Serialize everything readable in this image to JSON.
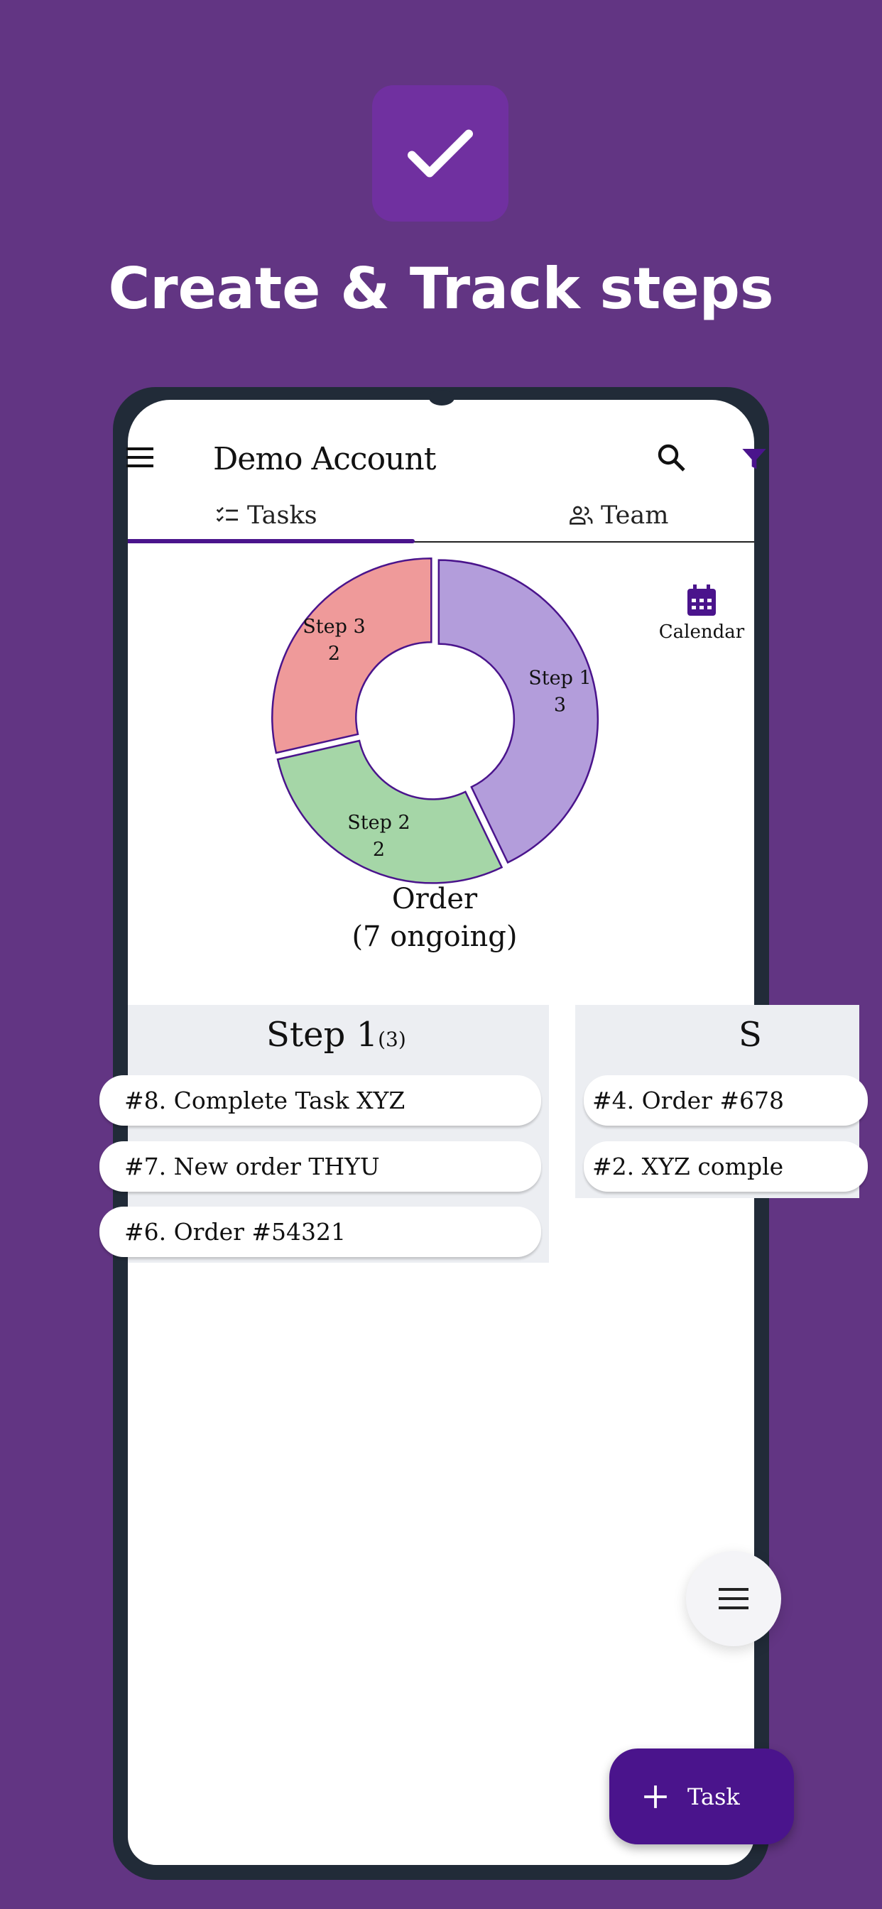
{
  "promo": {
    "headline": "Create & Track steps",
    "icon": "checkmark-icon",
    "accent": "#7030a0",
    "background": "#623583"
  },
  "header": {
    "title": "Demo Account",
    "menu_icon": "hamburger-icon",
    "search_icon": "search-icon",
    "filter_icon": "filter-icon"
  },
  "tabs": [
    {
      "label": "Tasks",
      "icon": "checklist-icon",
      "active": true
    },
    {
      "label": "Team",
      "icon": "people-icon",
      "active": false
    }
  ],
  "calendar": {
    "label": "Calendar",
    "icon": "calendar-icon"
  },
  "chart_data": {
    "type": "pie",
    "variant": "donut",
    "title": "Order",
    "subtitle": "(7 ongoing)",
    "categories": [
      "Step 1",
      "Step 2",
      "Step 3"
    ],
    "values": [
      3,
      2,
      2
    ],
    "colors": [
      "#b39ddb",
      "#a5d6a7",
      "#ef9a9a"
    ],
    "stroke": "#4a148c"
  },
  "columns": [
    {
      "title": "Step 1",
      "count": "(3)",
      "cards": [
        "#8. Complete Task XYZ",
        "#7. New order THYU",
        "#6. Order #54321"
      ]
    },
    {
      "title": "S",
      "count": "",
      "cards": [
        "#4. Order #678",
        "#2. XYZ comple"
      ]
    }
  ],
  "fab": {
    "icon": "menu-icon"
  },
  "add_task": {
    "label": "Task",
    "icon": "plus-icon",
    "color": "#4a148c"
  }
}
